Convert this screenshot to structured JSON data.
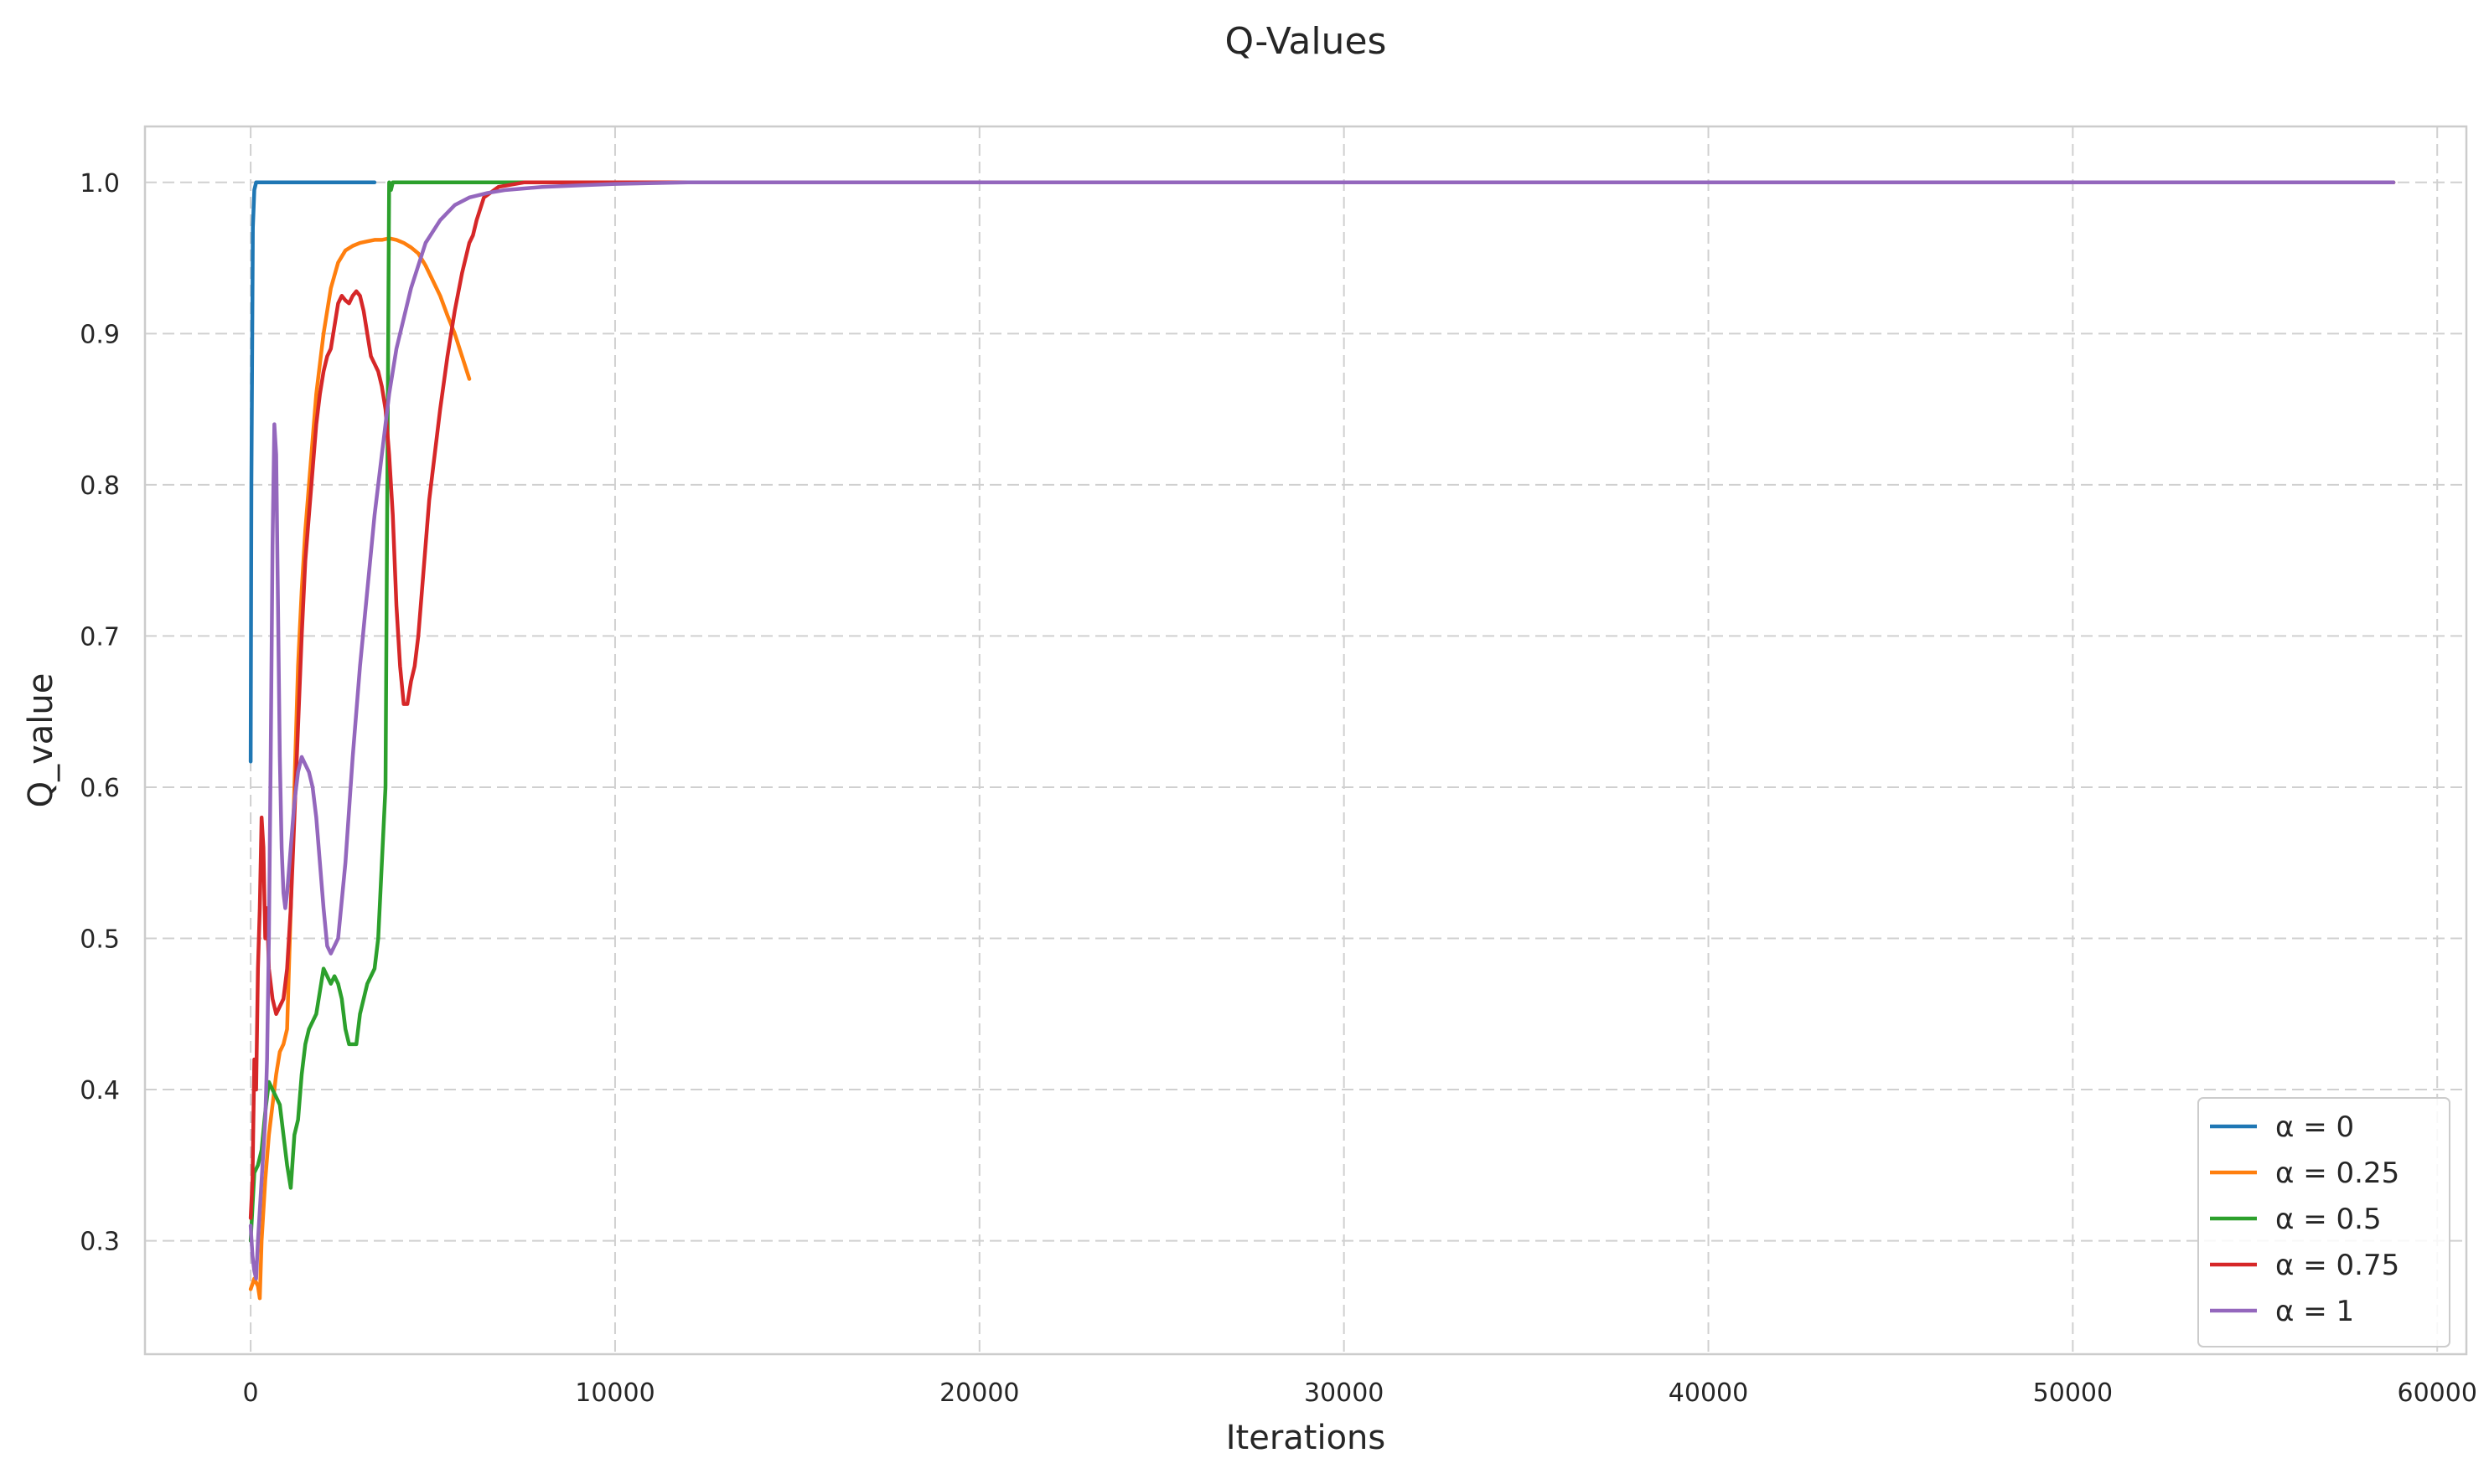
{
  "chart_data": {
    "type": "line",
    "title": "Q-Values",
    "xlabel": "Iterations",
    "ylabel": "Q_value",
    "xlim": [
      -2900,
      60800
    ],
    "ylim": [
      0.225,
      1.037
    ],
    "xticks": [
      0,
      10000,
      20000,
      30000,
      40000,
      50000,
      60000
    ],
    "yticks": [
      0.3,
      0.4,
      0.5,
      0.6,
      0.7,
      0.8,
      0.9,
      1.0
    ],
    "xtick_labels": [
      "0",
      "10000",
      "20000",
      "30000",
      "40000",
      "50000",
      "60000"
    ],
    "ytick_labels": [
      "0.3",
      "0.4",
      "0.5",
      "0.6",
      "0.7",
      "0.8",
      "0.9",
      "1.0"
    ],
    "grid": true,
    "legend_position": "lower-right",
    "series": [
      {
        "name": "α = 0",
        "color": "#1f77b4",
        "x": [
          0,
          20,
          60,
          100,
          150,
          300,
          1000,
          2000,
          3400
        ],
        "y": [
          0.617,
          0.8,
          0.97,
          0.995,
          1.0,
          1.0,
          1.0,
          1.0,
          1.0
        ]
      },
      {
        "name": "α = 0.25",
        "color": "#ff7f0e",
        "x": [
          0,
          100,
          200,
          250,
          300,
          400,
          500,
          600,
          700,
          800,
          900,
          1000,
          1100,
          1200,
          1300,
          1400,
          1500,
          1600,
          1700,
          1800,
          1900,
          2000,
          2200,
          2400,
          2600,
          2800,
          3000,
          3200,
          3400,
          3600,
          3800,
          4000,
          4200,
          4400,
          4600,
          4800,
          5000,
          5200,
          5400,
          5600,
          5800,
          6000
        ],
        "y": [
          0.268,
          0.275,
          0.27,
          0.262,
          0.3,
          0.34,
          0.37,
          0.39,
          0.41,
          0.425,
          0.43,
          0.44,
          0.52,
          0.6,
          0.68,
          0.73,
          0.77,
          0.8,
          0.83,
          0.86,
          0.88,
          0.9,
          0.93,
          0.947,
          0.955,
          0.958,
          0.96,
          0.961,
          0.962,
          0.962,
          0.963,
          0.962,
          0.96,
          0.957,
          0.953,
          0.945,
          0.935,
          0.925,
          0.912,
          0.9,
          0.885,
          0.87
        ]
      },
      {
        "name": "α = 0.5",
        "color": "#2ca02c",
        "x": [
          0,
          100,
          200,
          300,
          400,
          500,
          600,
          700,
          800,
          900,
          1000,
          1100,
          1200,
          1300,
          1400,
          1500,
          1600,
          1700,
          1800,
          1900,
          2000,
          2100,
          2200,
          2300,
          2400,
          2500,
          2600,
          2700,
          2800,
          2900,
          3000,
          3100,
          3200,
          3300,
          3400,
          3500,
          3600,
          3700,
          3750,
          3800,
          3850,
          3900,
          4000,
          5000,
          7000,
          10000,
          20000,
          40000,
          58800
        ],
        "y": [
          0.3,
          0.345,
          0.35,
          0.36,
          0.385,
          0.405,
          0.4,
          0.395,
          0.39,
          0.37,
          0.35,
          0.335,
          0.37,
          0.38,
          0.41,
          0.43,
          0.44,
          0.445,
          0.45,
          0.465,
          0.48,
          0.475,
          0.47,
          0.475,
          0.47,
          0.46,
          0.44,
          0.43,
          0.43,
          0.43,
          0.45,
          0.46,
          0.47,
          0.475,
          0.48,
          0.5,
          0.55,
          0.6,
          0.8,
          1.0,
          0.995,
          1.0,
          1.0,
          1.0,
          1.0,
          1.0,
          1.0,
          1.0,
          1.0
        ]
      },
      {
        "name": "α = 0.75",
        "color": "#d62728",
        "x": [
          0,
          50,
          100,
          150,
          200,
          250,
          300,
          350,
          400,
          450,
          500,
          600,
          700,
          800,
          900,
          1000,
          1100,
          1200,
          1300,
          1400,
          1500,
          1600,
          1700,
          1800,
          1900,
          2000,
          2100,
          2200,
          2300,
          2400,
          2500,
          2600,
          2700,
          2800,
          2900,
          3000,
          3100,
          3200,
          3300,
          3400,
          3500,
          3600,
          3700,
          3800,
          3900,
          4000,
          4100,
          4200,
          4300,
          4400,
          4500,
          4600,
          4700,
          4800,
          4900,
          5000,
          5200,
          5400,
          5600,
          5800,
          6000,
          6100,
          6200,
          6400,
          6800,
          7500,
          9000,
          12000,
          20000,
          40000,
          58800
        ],
        "y": [
          0.315,
          0.34,
          0.42,
          0.4,
          0.48,
          0.52,
          0.58,
          0.56,
          0.5,
          0.52,
          0.48,
          0.46,
          0.45,
          0.455,
          0.46,
          0.48,
          0.52,
          0.58,
          0.64,
          0.7,
          0.75,
          0.78,
          0.81,
          0.84,
          0.86,
          0.875,
          0.885,
          0.89,
          0.905,
          0.92,
          0.925,
          0.922,
          0.92,
          0.925,
          0.928,
          0.925,
          0.915,
          0.9,
          0.885,
          0.88,
          0.875,
          0.865,
          0.85,
          0.82,
          0.78,
          0.72,
          0.68,
          0.655,
          0.655,
          0.67,
          0.68,
          0.7,
          0.73,
          0.76,
          0.79,
          0.81,
          0.85,
          0.885,
          0.915,
          0.94,
          0.96,
          0.965,
          0.975,
          0.99,
          0.997,
          1.0,
          1.0,
          1.0,
          1.0,
          1.0,
          1.0
        ]
      },
      {
        "name": "α = 1",
        "color": "#9467bd",
        "x": [
          0,
          50,
          100,
          150,
          200,
          250,
          300,
          350,
          400,
          450,
          500,
          550,
          600,
          650,
          700,
          750,
          800,
          850,
          900,
          950,
          1000,
          1100,
          1200,
          1300,
          1400,
          1500,
          1600,
          1700,
          1800,
          1900,
          2000,
          2100,
          2200,
          2400,
          2600,
          2800,
          3000,
          3200,
          3400,
          3600,
          3800,
          4000,
          4400,
          4800,
          5200,
          5600,
          6000,
          6500,
          7000,
          8000,
          9000,
          10000,
          12000,
          15000,
          20000,
          30000,
          40000,
          50000,
          58800
        ],
        "y": [
          0.31,
          0.29,
          0.28,
          0.275,
          0.3,
          0.32,
          0.34,
          0.36,
          0.38,
          0.42,
          0.5,
          0.62,
          0.76,
          0.84,
          0.82,
          0.72,
          0.62,
          0.56,
          0.53,
          0.52,
          0.53,
          0.56,
          0.59,
          0.61,
          0.62,
          0.615,
          0.61,
          0.6,
          0.58,
          0.55,
          0.52,
          0.495,
          0.49,
          0.5,
          0.55,
          0.62,
          0.68,
          0.73,
          0.78,
          0.82,
          0.86,
          0.89,
          0.93,
          0.96,
          0.975,
          0.985,
          0.99,
          0.993,
          0.995,
          0.997,
          0.998,
          0.999,
          1.0,
          1.0,
          1.0,
          1.0,
          1.0,
          1.0,
          1.0
        ]
      }
    ]
  }
}
